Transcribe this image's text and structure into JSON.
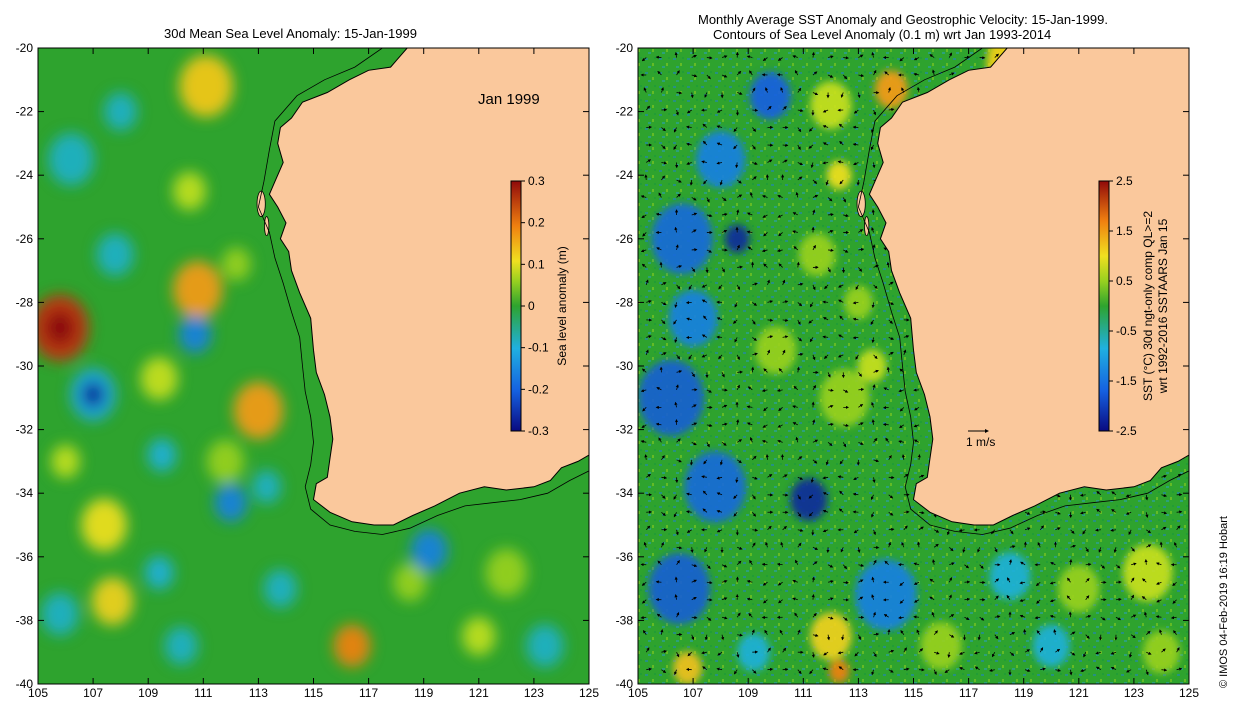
{
  "left_map": {
    "title": "30d Mean Sea Level Anomaly: 15-Jan-1999",
    "date_label": "Jan 1999",
    "x_ticks": [
      "105",
      "107",
      "109",
      "111",
      "113",
      "115",
      "117",
      "119",
      "121",
      "123",
      "125"
    ],
    "y_ticks": [
      "-20",
      "-22",
      "-24",
      "-26",
      "-28",
      "-30",
      "-32",
      "-34",
      "-36",
      "-38",
      "-40"
    ],
    "colorbar": {
      "label": "Sea level anomaly (m)",
      "ticks": [
        "0.3",
        "0.2",
        "0.1",
        "0",
        "-0.1",
        "-0.2",
        "-0.3"
      ],
      "range": [
        -0.3,
        0.3
      ]
    }
  },
  "right_map": {
    "title_line1": "Monthly Average SST Anomaly  and Geostrophic Velocity: 15-Jan-1999.",
    "title_line2": "Contours of Sea Level Anomaly (0.1 m) wrt Jan 1993-2014",
    "x_ticks": [
      "105",
      "107",
      "109",
      "111",
      "113",
      "115",
      "117",
      "119",
      "121",
      "123",
      "125"
    ],
    "y_ticks": [
      "-20",
      "-22",
      "-24",
      "-26",
      "-28",
      "-30",
      "-32",
      "-34",
      "-36",
      "-38",
      "-40"
    ],
    "velocity_scale_label": "1 m/s",
    "colorbar": {
      "label_line1": "SST (°C) 30d ngt-only comp QL>=2",
      "label_line2": "wrt 1992-2016 SSTAARS Jan 15",
      "ticks": [
        "2.5",
        "1.5",
        "0.5",
        "-0.5",
        "-1.5",
        "-2.5"
      ],
      "range": [
        -2.5,
        2.5
      ]
    }
  },
  "copyright": "© IMOS 04-Feb-2019 16:19 Hobart",
  "colors": {
    "land": "#fac89c",
    "ocean_base": "#2ea32e",
    "coast": "#000000"
  }
}
